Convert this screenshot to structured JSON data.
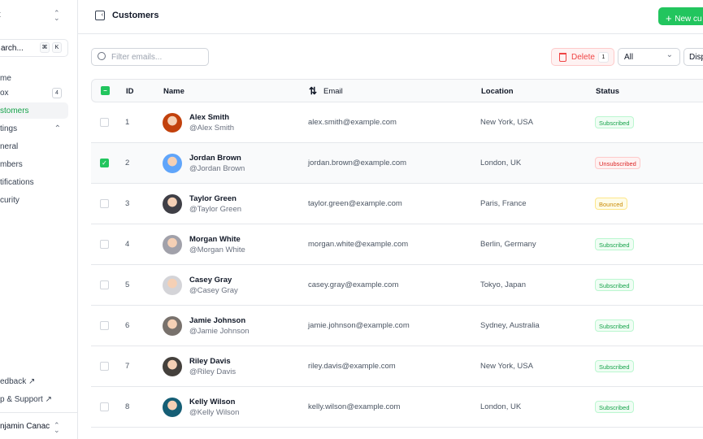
{
  "sidebar": {
    "team": "xt",
    "search": "arch...",
    "kbd": [
      "⌘",
      "K"
    ],
    "items": [
      {
        "label": "me"
      },
      {
        "label": "ox",
        "badge": "4"
      },
      {
        "label": "stomers",
        "active": true
      },
      {
        "label": "tings"
      },
      {
        "label": "neral"
      },
      {
        "label": "mbers"
      },
      {
        "label": "tifications"
      },
      {
        "label": "curity"
      }
    ],
    "feedback": "edback ↗",
    "help": "p & Support ↗",
    "user": "njamin Canac"
  },
  "header": {
    "title": "Customers",
    "new_button": "New cu"
  },
  "toolbar": {
    "filter_placeholder": "Filter emails...",
    "delete": "Delete",
    "delete_count": "1",
    "status_select": "All",
    "display": "Disp"
  },
  "table": {
    "headers": {
      "id": "ID",
      "name": "Name",
      "email": "Email",
      "location": "Location",
      "status": "Status"
    },
    "rows": [
      {
        "id": "1",
        "name": "Alex Smith",
        "handle": "@Alex Smith",
        "email": "alex.smith@example.com",
        "location": "New York, USA",
        "status": "Subscribed",
        "checked": false
      },
      {
        "id": "2",
        "name": "Jordan Brown",
        "handle": "@Jordan Brown",
        "email": "jordan.brown@example.com",
        "location": "London, UK",
        "status": "Unsubscribed",
        "checked": true
      },
      {
        "id": "3",
        "name": "Taylor Green",
        "handle": "@Taylor Green",
        "email": "taylor.green@example.com",
        "location": "Paris, France",
        "status": "Bounced",
        "checked": false
      },
      {
        "id": "4",
        "name": "Morgan White",
        "handle": "@Morgan White",
        "email": "morgan.white@example.com",
        "location": "Berlin, Germany",
        "status": "Subscribed",
        "checked": false
      },
      {
        "id": "5",
        "name": "Casey Gray",
        "handle": "@Casey Gray",
        "email": "casey.gray@example.com",
        "location": "Tokyo, Japan",
        "status": "Subscribed",
        "checked": false
      },
      {
        "id": "6",
        "name": "Jamie Johnson",
        "handle": "@Jamie Johnson",
        "email": "jamie.johnson@example.com",
        "location": "Sydney, Australia",
        "status": "Subscribed",
        "checked": false
      },
      {
        "id": "7",
        "name": "Riley Davis",
        "handle": "@Riley Davis",
        "email": "riley.davis@example.com",
        "location": "New York, USA",
        "status": "Subscribed",
        "checked": false
      },
      {
        "id": "8",
        "name": "Kelly Wilson",
        "handle": "@Kelly Wilson",
        "email": "kelly.wilson@example.com",
        "location": "London, UK",
        "status": "Subscribed",
        "checked": false
      }
    ]
  },
  "colors": {
    "accent": "#22c55e",
    "danger": "#ef4444",
    "warning": "#eab308"
  }
}
